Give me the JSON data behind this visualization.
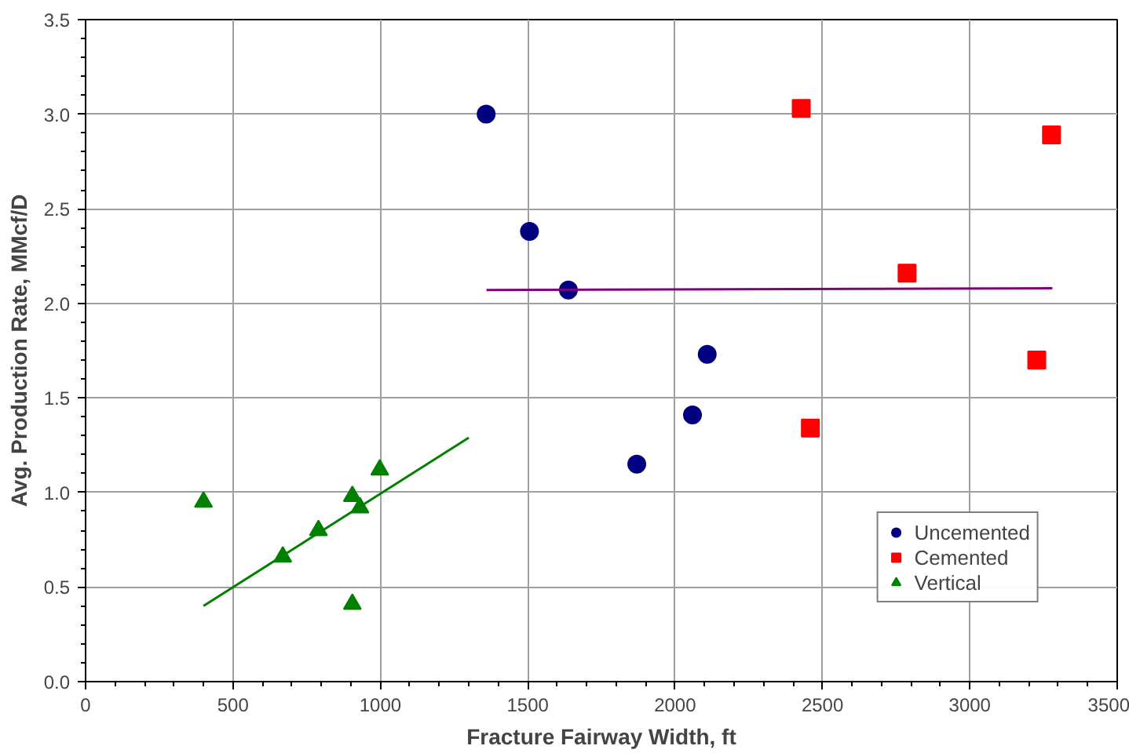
{
  "chart_data": {
    "type": "scatter",
    "xlabel": "Fracture Fairway Width, ft",
    "ylabel": "Avg. Production Rate, MMcf/D",
    "xlim": [
      0,
      3500
    ],
    "xticks": [
      0,
      500,
      1000,
      1500,
      2000,
      2500,
      3000,
      3500
    ],
    "ylim": [
      0,
      3.5
    ],
    "yticks": [
      {
        "value": 0,
        "label": "0.0"
      },
      0.5,
      {
        "value": 1,
        "label": "1.0"
      },
      1.5,
      {
        "value": 2,
        "label": "2.0"
      },
      2.5,
      {
        "value": 3,
        "label": "3.0"
      },
      3.5
    ],
    "grid": true,
    "legend": "bottom right",
    "series": [
      {
        "name": "Uncemented",
        "color": "#000080",
        "marker": "circle",
        "x": [
          1359,
          1506,
          1638,
          1870,
          2059,
          2109
        ],
        "values": [
          3.0,
          2.38,
          2.07,
          1.15,
          1.41,
          1.73
        ]
      },
      {
        "name": "Cemented",
        "color": "#ff0000",
        "marker": "square",
        "x": [
          2428,
          3277,
          2787,
          3227,
          2459
        ],
        "values": [
          3.03,
          2.89,
          2.16,
          1.7,
          1.34
        ]
      },
      {
        "name": "Vertical",
        "color": "#008000",
        "marker": "triangle",
        "x": [
          400,
          669,
          790,
          905,
          931,
          998,
          905
        ],
        "values": [
          0.95,
          0.66,
          0.8,
          0.98,
          0.92,
          1.12,
          0.41
        ]
      },
      {
        "type": "line",
        "color": "#800080",
        "x": [
          1360,
          3280
        ],
        "values": [
          2.07,
          2.08
        ]
      },
      {
        "type": "line",
        "color": "#008000",
        "x": [
          400,
          1300
        ],
        "values": [
          0.4,
          1.29
        ]
      }
    ]
  }
}
